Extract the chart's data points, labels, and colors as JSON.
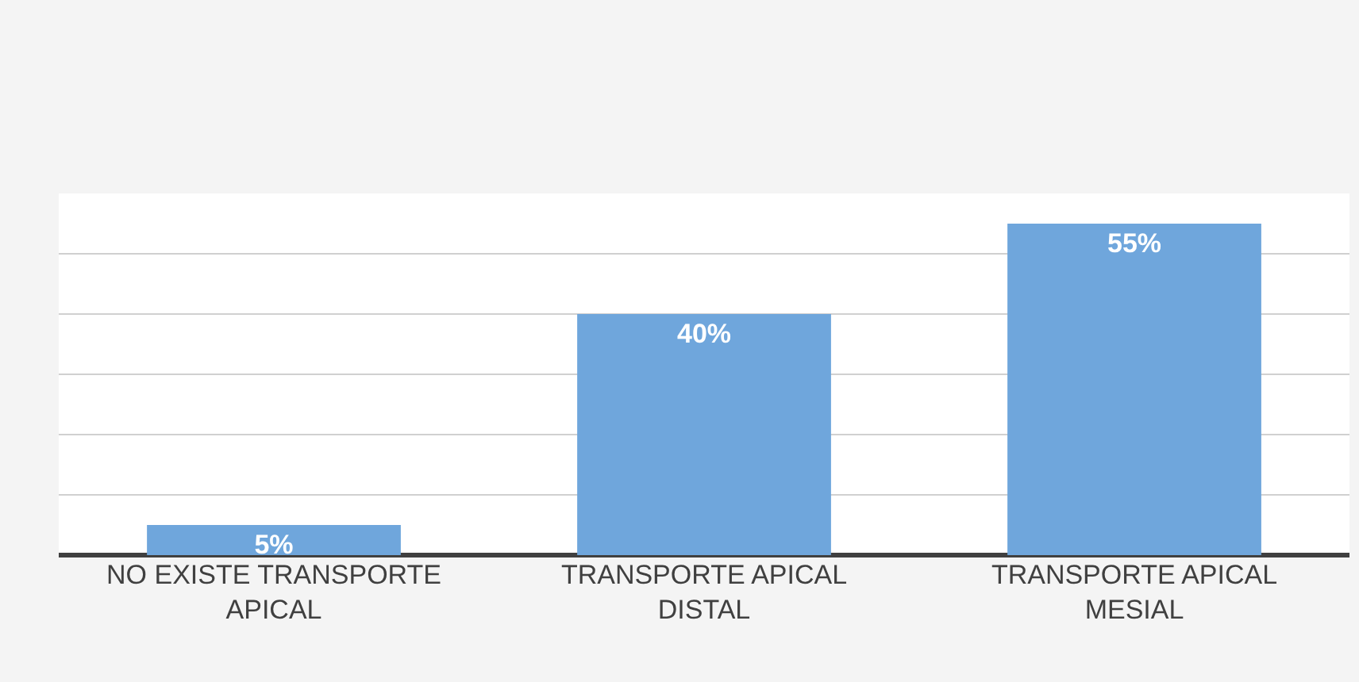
{
  "chart_data": {
    "type": "bar",
    "categories": [
      "NO EXISTE TRANSPORTE APICAL",
      "TRANSPORTE APICAL DISTAL",
      "TRANSPORTE APICAL MESIAL"
    ],
    "values": [
      5,
      40,
      55
    ],
    "value_labels": [
      "5%",
      "40%",
      "55%"
    ],
    "color": "#6fa6dc",
    "ylim": [
      0,
      60
    ],
    "yticks": [
      {
        "value": 0,
        "label": null
      },
      {
        "value": 10,
        "label": null
      },
      {
        "value": 20,
        "label": null
      },
      {
        "value": 30,
        "label": null
      },
      {
        "value": 40,
        "label": null
      },
      {
        "value": 50,
        "label": null
      },
      {
        "value": 60,
        "label": null
      }
    ],
    "grid": "y",
    "tick_labels": "x"
  }
}
